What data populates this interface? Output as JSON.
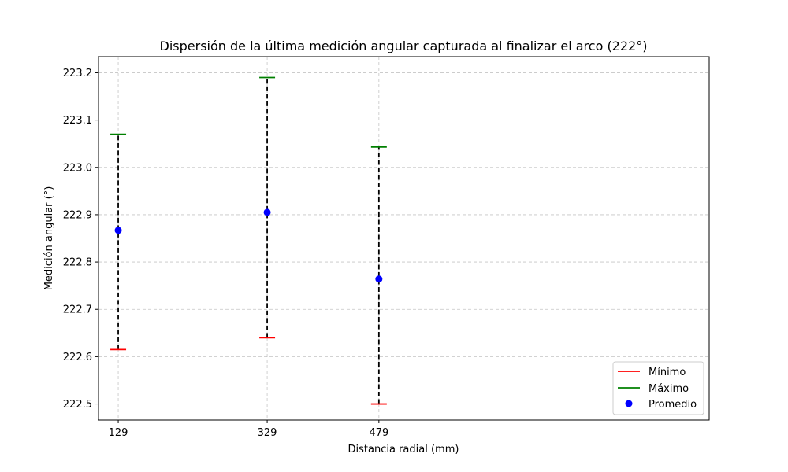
{
  "chart_data": {
    "type": "scatter",
    "title": "Dispersión de la última medición angular capturada al finalizar el arco (222°)",
    "xlabel": "Distancia radial (mm)",
    "ylabel": "Medición angular (°)",
    "categories": [
      "129",
      "329",
      "479"
    ],
    "series": [
      {
        "name": "Mínimo",
        "values": [
          222.615,
          222.64,
          222.5
        ],
        "color": "#ff0000",
        "marker": "hline"
      },
      {
        "name": "Máximo",
        "values": [
          223.07,
          223.19,
          223.043
        ],
        "color": "#008000",
        "marker": "hline"
      },
      {
        "name": "Promedio",
        "values": [
          222.867,
          222.905,
          222.764
        ],
        "color": "#0000ff",
        "marker": "circle"
      }
    ],
    "range_line_color": "#000000",
    "ylim": [
      222.466,
      223.234
    ],
    "yticks": [
      "222.5",
      "222.6",
      "222.7",
      "222.8",
      "222.9",
      "223.0",
      "223.1",
      "223.2"
    ],
    "grid": true,
    "legend_position": "bottom-right"
  }
}
